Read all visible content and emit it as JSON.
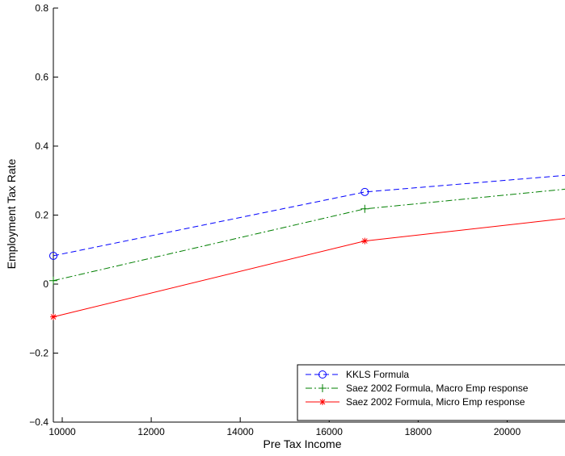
{
  "chart_data": {
    "type": "line",
    "xlabel": "Pre Tax Income",
    "ylabel": "Employment Tax Rate",
    "xlim": [
      9800,
      21300
    ],
    "ylim": [
      -0.4,
      0.8
    ],
    "xticks": [
      10000,
      12000,
      14000,
      16000,
      18000,
      20000
    ],
    "yticks": [
      -0.4,
      -0.2,
      0,
      0.2,
      0.4,
      0.6,
      0.8
    ],
    "ytick_labels": [
      "−0.4",
      "−0.2",
      "0",
      "0.2",
      "0.4",
      "0.6",
      "0.8"
    ],
    "grid": false,
    "legend_position": "bottom-right",
    "series": [
      {
        "name": "KKLS Formula",
        "color": "#0000ff",
        "line_style": "dashed",
        "marker": "circle",
        "x": [
          9800,
          16800,
          21300
        ],
        "y": [
          0.082,
          0.267,
          0.315
        ]
      },
      {
        "name": "Saez 2002 Formula, Macro Emp response",
        "color": "#007f00",
        "line_style": "dash-dot",
        "marker": "plus",
        "x": [
          9800,
          16800,
          21300
        ],
        "y": [
          0.01,
          0.218,
          0.275
        ]
      },
      {
        "name": "Saez 2002 Formula, Micro Emp response",
        "color": "#ff0000",
        "line_style": "solid",
        "marker": "asterisk",
        "x": [
          9800,
          16800,
          21300
        ],
        "y": [
          -0.095,
          0.125,
          0.19
        ]
      }
    ]
  }
}
